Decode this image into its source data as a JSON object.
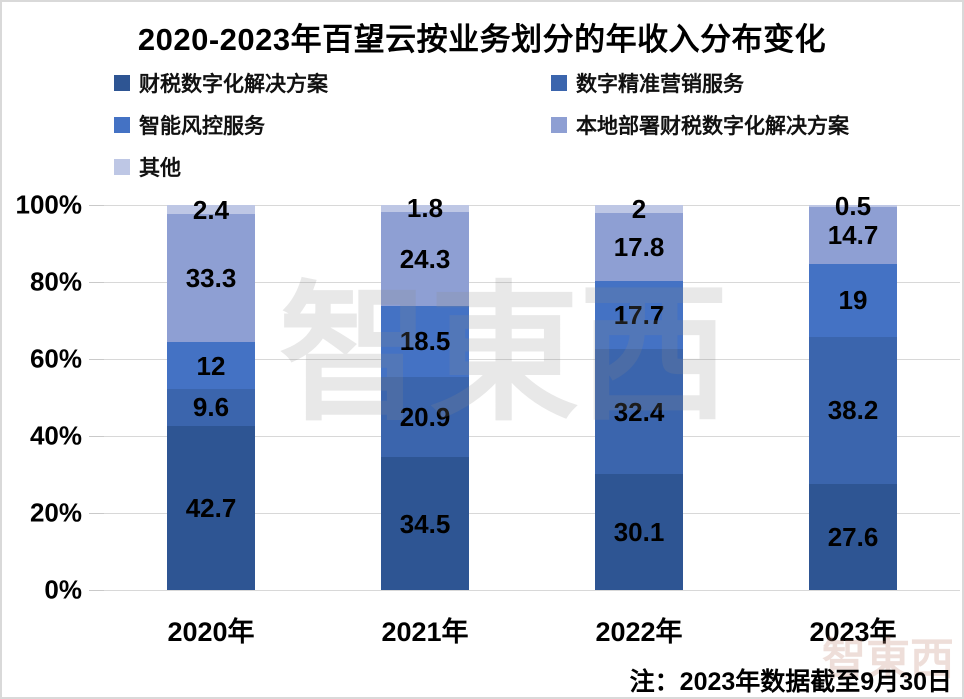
{
  "title": "2020-2023年百望云按业务划分的年收入分布变化",
  "note": "注：2023年数据截至9月30日",
  "watermark": {
    "center": "智東西",
    "corner": "智東西"
  },
  "chart_data": {
    "type": "bar",
    "subtype": "stacked-100-percent",
    "title": "2020-2023年百望云按业务划分的年收入分布变化",
    "categories": [
      "2020年",
      "2021年",
      "2022年",
      "2023年"
    ],
    "series": [
      {
        "name": "财税数字化解决方案",
        "color": "#2E5593",
        "values": [
          42.7,
          34.5,
          30.1,
          27.6
        ]
      },
      {
        "name": "数字精准营销服务",
        "color": "#3B65AD",
        "values": [
          9.6,
          20.9,
          32.4,
          38.2
        ]
      },
      {
        "name": "智能风控服务",
        "color": "#4472C4",
        "values": [
          12,
          18.5,
          17.7,
          19
        ]
      },
      {
        "name": "本地部署财税数字化解决方案",
        "color": "#8E9FD3",
        "values": [
          33.3,
          24.3,
          17.8,
          14.7
        ]
      },
      {
        "name": "其他",
        "color": "#BEC7E5",
        "values": [
          2.4,
          1.8,
          2,
          0.5
        ]
      }
    ],
    "y_ticks": [
      "100%",
      "80%",
      "60%",
      "40%",
      "20%",
      "0%"
    ],
    "ylim": [
      0,
      100
    ],
    "xlabel": "",
    "ylabel": "",
    "grid": true,
    "legend_position": "top-left-two-columns",
    "value_labels": "inside-center",
    "footnote": "注：2023年数据截至9月30日"
  }
}
